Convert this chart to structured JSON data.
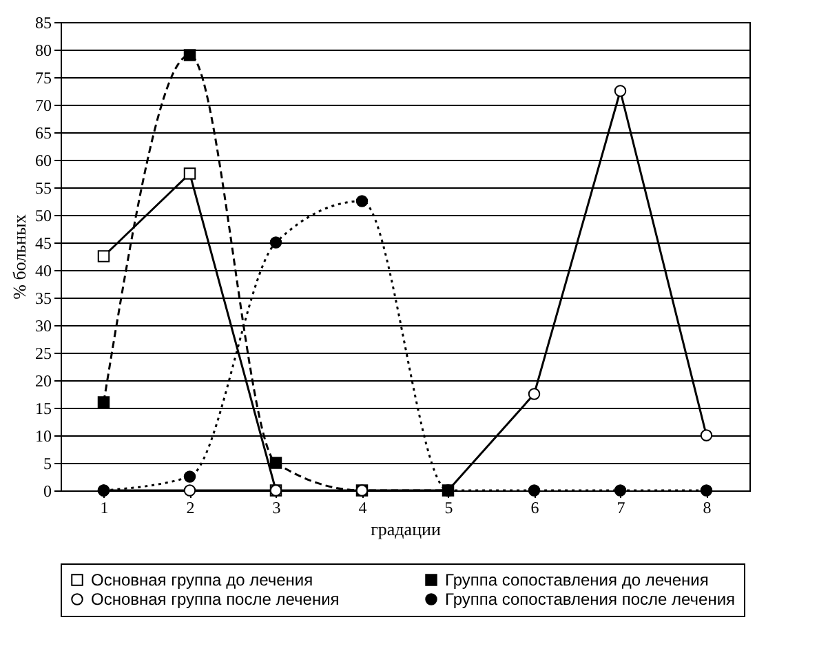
{
  "chart_data": {
    "type": "line",
    "xlabel": "градации",
    "ylabel": "% больных",
    "categories": [
      "1",
      "2",
      "3",
      "4",
      "5",
      "6",
      "7",
      "8"
    ],
    "series": [
      {
        "name": "Основная группа до лечения",
        "color": "#000000",
        "marker": "square",
        "line_style": "solid",
        "values": [
          42.5,
          57.5,
          0,
          null,
          null,
          null,
          null,
          null
        ]
      },
      {
        "name": "Группа сопоставления до лечения",
        "color": "#000000",
        "marker": "square",
        "line_style": "dashed",
        "values": [
          16,
          79,
          5,
          0,
          0,
          null,
          null,
          null
        ]
      },
      {
        "name": "Основная группа после лечения",
        "color": "#000000",
        "marker": "circle",
        "line_style": "solid",
        "values": [
          0,
          0,
          0,
          0,
          0,
          17.5,
          72.5,
          10
        ]
      },
      {
        "name": "Группа сопоставления после лечения",
        "color": "#000000",
        "marker": "circle",
        "line_style": "dotted",
        "values": [
          0,
          2.5,
          45,
          52.5,
          0,
          0,
          0,
          0
        ]
      }
    ],
    "ylim": [
      0,
      85
    ],
    "yticks": [
      0,
      5,
      10,
      15,
      20,
      25,
      30,
      35,
      40,
      45,
      50,
      55,
      60,
      65,
      70,
      75,
      80,
      85
    ],
    "grid": "y",
    "legend": "bottom"
  }
}
